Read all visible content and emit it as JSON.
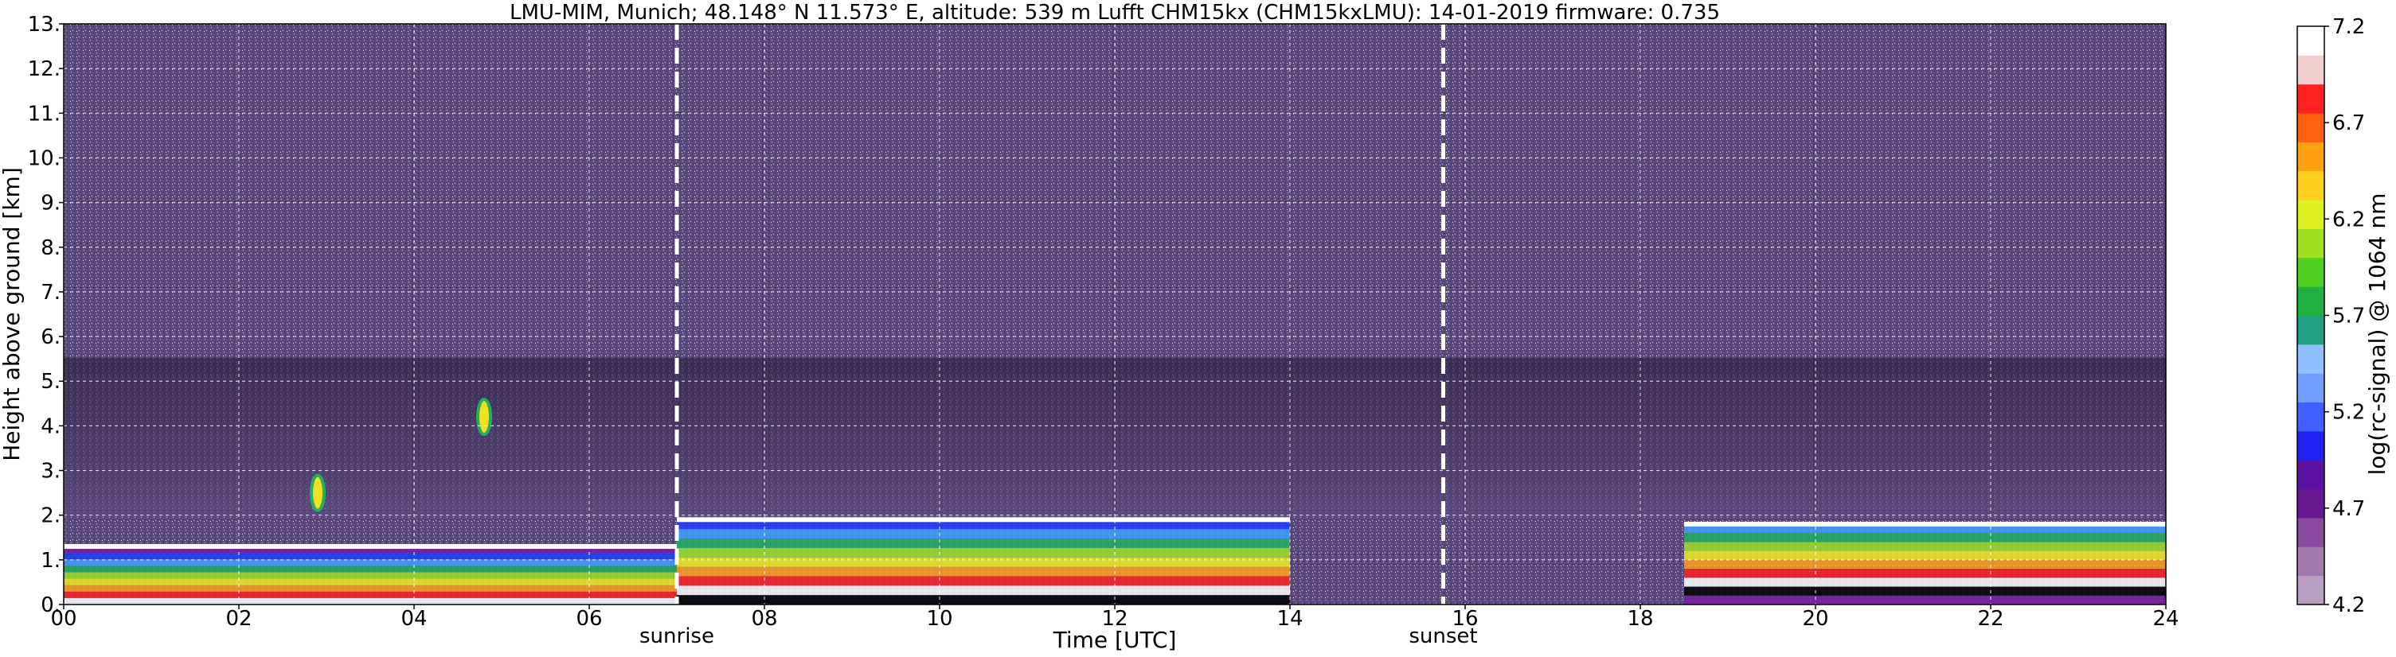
{
  "chart_data": {
    "type": "heatmap",
    "title": "LMU-MIM, Munich; 48.148° N 11.573° E, altitude: 539 m    Lufft CHM15kx (CHM15kxLMU): 14-01-2019    firmware: 0.735",
    "xlabel": "Time [UTC]",
    "ylabel": "Height above ground [km]",
    "colorbar_label": "log(rc-signal) @ 1064 nm",
    "xlim": [
      0,
      24
    ],
    "ylim": [
      0,
      13
    ],
    "x_ticks": [
      "00",
      "02",
      "04",
      "06",
      "08",
      "10",
      "12",
      "14",
      "16",
      "18",
      "20",
      "22",
      "24"
    ],
    "y_ticks": [
      "0.",
      "1.",
      "2.",
      "3.",
      "4.",
      "5.",
      "6.",
      "7.",
      "8.",
      "9.",
      "10.",
      "11.",
      "12.",
      "13."
    ],
    "colorbar_ticks": [
      "4.2",
      "4.7",
      "5.2",
      "5.7",
      "6.2",
      "6.7",
      "7.2"
    ],
    "colorbar_range": [
      4.2,
      7.2
    ],
    "grid": true,
    "markers": [
      {
        "label": "sunrise",
        "time": 7.0
      },
      {
        "label": "sunset",
        "time": 15.75
      }
    ],
    "features": [
      {
        "kind": "boundary_layer",
        "time_start": 0,
        "time_end": 7,
        "top_km": 1.3
      },
      {
        "kind": "elevated_layer",
        "time_start": 7,
        "time_end": 14,
        "top_km": 1.9
      },
      {
        "kind": "boundary_layer",
        "time_start": 18.5,
        "time_end": 24,
        "top_km": 1.8
      },
      {
        "kind": "cloud",
        "time": 4.8,
        "height_km": 4.2
      },
      {
        "kind": "cloud",
        "time": 2.9,
        "height_km": 2.5
      }
    ],
    "colors": {
      "background_signal": "#5b4a7c",
      "noise_light": "#ffffff",
      "marker_line": "#ffffff"
    }
  }
}
